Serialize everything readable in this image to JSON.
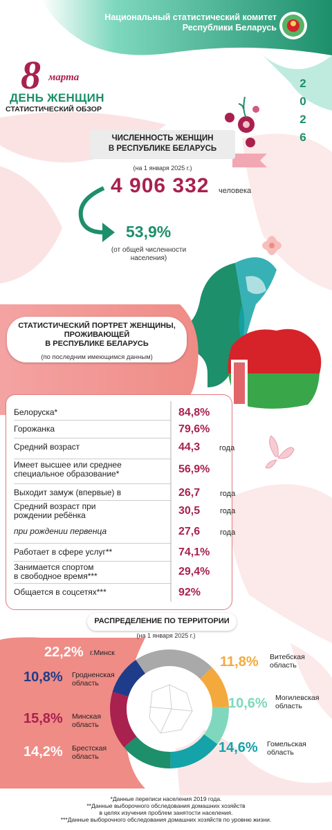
{
  "header": {
    "org_line1": "Национальный статистический комитет",
    "org_line2": "Республики Беларусь",
    "colors": {
      "green": "#1d8f6b",
      "mint": "#7fd8bd",
      "crimson": "#a8214f",
      "pink": "#f2c4c6",
      "salmon": "#ef8c86"
    }
  },
  "title": {
    "eight": "8",
    "marta": "марта",
    "day": "ДЕНЬ ЖЕНЩИН",
    "overview": "СТАТИСТИЧЕСКИЙ ОБЗОР",
    "year_digits": [
      "2",
      "0",
      "2",
      "6"
    ]
  },
  "population": {
    "banner_line1": "ЧИСЛЕННОСТЬ ЖЕНЩИН",
    "banner_line2": "В РЕСПУБЛИКЕ БЕЛАРУСЬ",
    "date": "(на 1 января 2025 г.)",
    "count": "4 906 332",
    "unit": "человека",
    "percent": "53,9%",
    "percent_note_line1": "(от общей численности",
    "percent_note_line2": "населения)"
  },
  "portrait": {
    "line1": "СТАТИСТИЧЕСКИЙ ПОРТРЕТ ЖЕНЩИНЫ,",
    "line2": "ПРОЖИВАЮЩЕЙ",
    "line3": "В РЕСПУБЛИКЕ БЕЛАРУСЬ",
    "note": "(по последним имеющимся данным)"
  },
  "stats": [
    {
      "l1": "Белоруска*",
      "l2": "",
      "value": "84,8%",
      "unit": "",
      "italic": false
    },
    {
      "l1": "Горожанка",
      "l2": "",
      "value": "79,6%",
      "unit": "",
      "italic": false
    },
    {
      "l1": "Средний возраст",
      "l2": "",
      "value": "44,3",
      "unit": "года",
      "italic": false
    },
    {
      "l1": "Имеет высшее или среднее",
      "l2": "специальное образование*",
      "value": "56,9%",
      "unit": "",
      "italic": false
    },
    {
      "l1": "Выходит замуж (впервые) в",
      "l2": "",
      "value": "26,7",
      "unit": "года",
      "italic": false
    },
    {
      "l1": "Средний возраст при",
      "l2": "рождении ребёнка",
      "value": "30,5",
      "unit": "года",
      "italic": false
    },
    {
      "l1": "при рождении первенца",
      "l2": "",
      "value": "27,6",
      "unit": "года",
      "italic": true
    },
    {
      "l1": "Работает в сфере услуг**",
      "l2": "",
      "value": "74,1%",
      "unit": "",
      "italic": false
    },
    {
      "l1": "Занимается спортом",
      "l2": "в свободное время***",
      "value": "29,4%",
      "unit": "",
      "italic": false
    },
    {
      "l1": "Общается в соцсетях***",
      "l2": "",
      "value": "92%",
      "unit": "",
      "italic": false
    }
  ],
  "distribution": {
    "title": "РАСПРЕДЕЛЕНИЕ ПО ТЕРРИТОРИИ",
    "date": "(на 1 января 2025 г.)",
    "regions": [
      {
        "percent": "22,2%",
        "name1": "г.Минск",
        "name2": "",
        "share": 22.2,
        "color": "#a9a9a9"
      },
      {
        "percent": "11,8%",
        "name1": "Витебская",
        "name2": "область",
        "share": 11.8,
        "color": "#f4a93c"
      },
      {
        "percent": "10,6%",
        "name1": "Могилевская",
        "name2": "область",
        "share": 10.6,
        "color": "#7fd8bd"
      },
      {
        "percent": "14,6%",
        "name1": "Гомельская",
        "name2": "область",
        "share": 14.6,
        "color": "#14a3a8"
      },
      {
        "percent": "14,2%",
        "name1": "Брестская",
        "name2": "область",
        "share": 14.2,
        "color": "#1d8f6b"
      },
      {
        "percent": "15,8%",
        "name1": "Минская",
        "name2": "область",
        "share": 15.8,
        "color": "#a8214f"
      },
      {
        "percent": "10,8%",
        "name1": "Гродненская",
        "name2": "область",
        "share": 10.8,
        "color": "#1f3c8a"
      }
    ]
  },
  "footnotes": {
    "f1": "*Данные переписи населения 2019 года.",
    "f2a": "**Данные выборочного обследования домашних хозяйств",
    "f2b": "в целях изучения проблем занятости населения.",
    "f3": "***Данные выборочного обследования домашних хозяйств по уровню жизни."
  }
}
